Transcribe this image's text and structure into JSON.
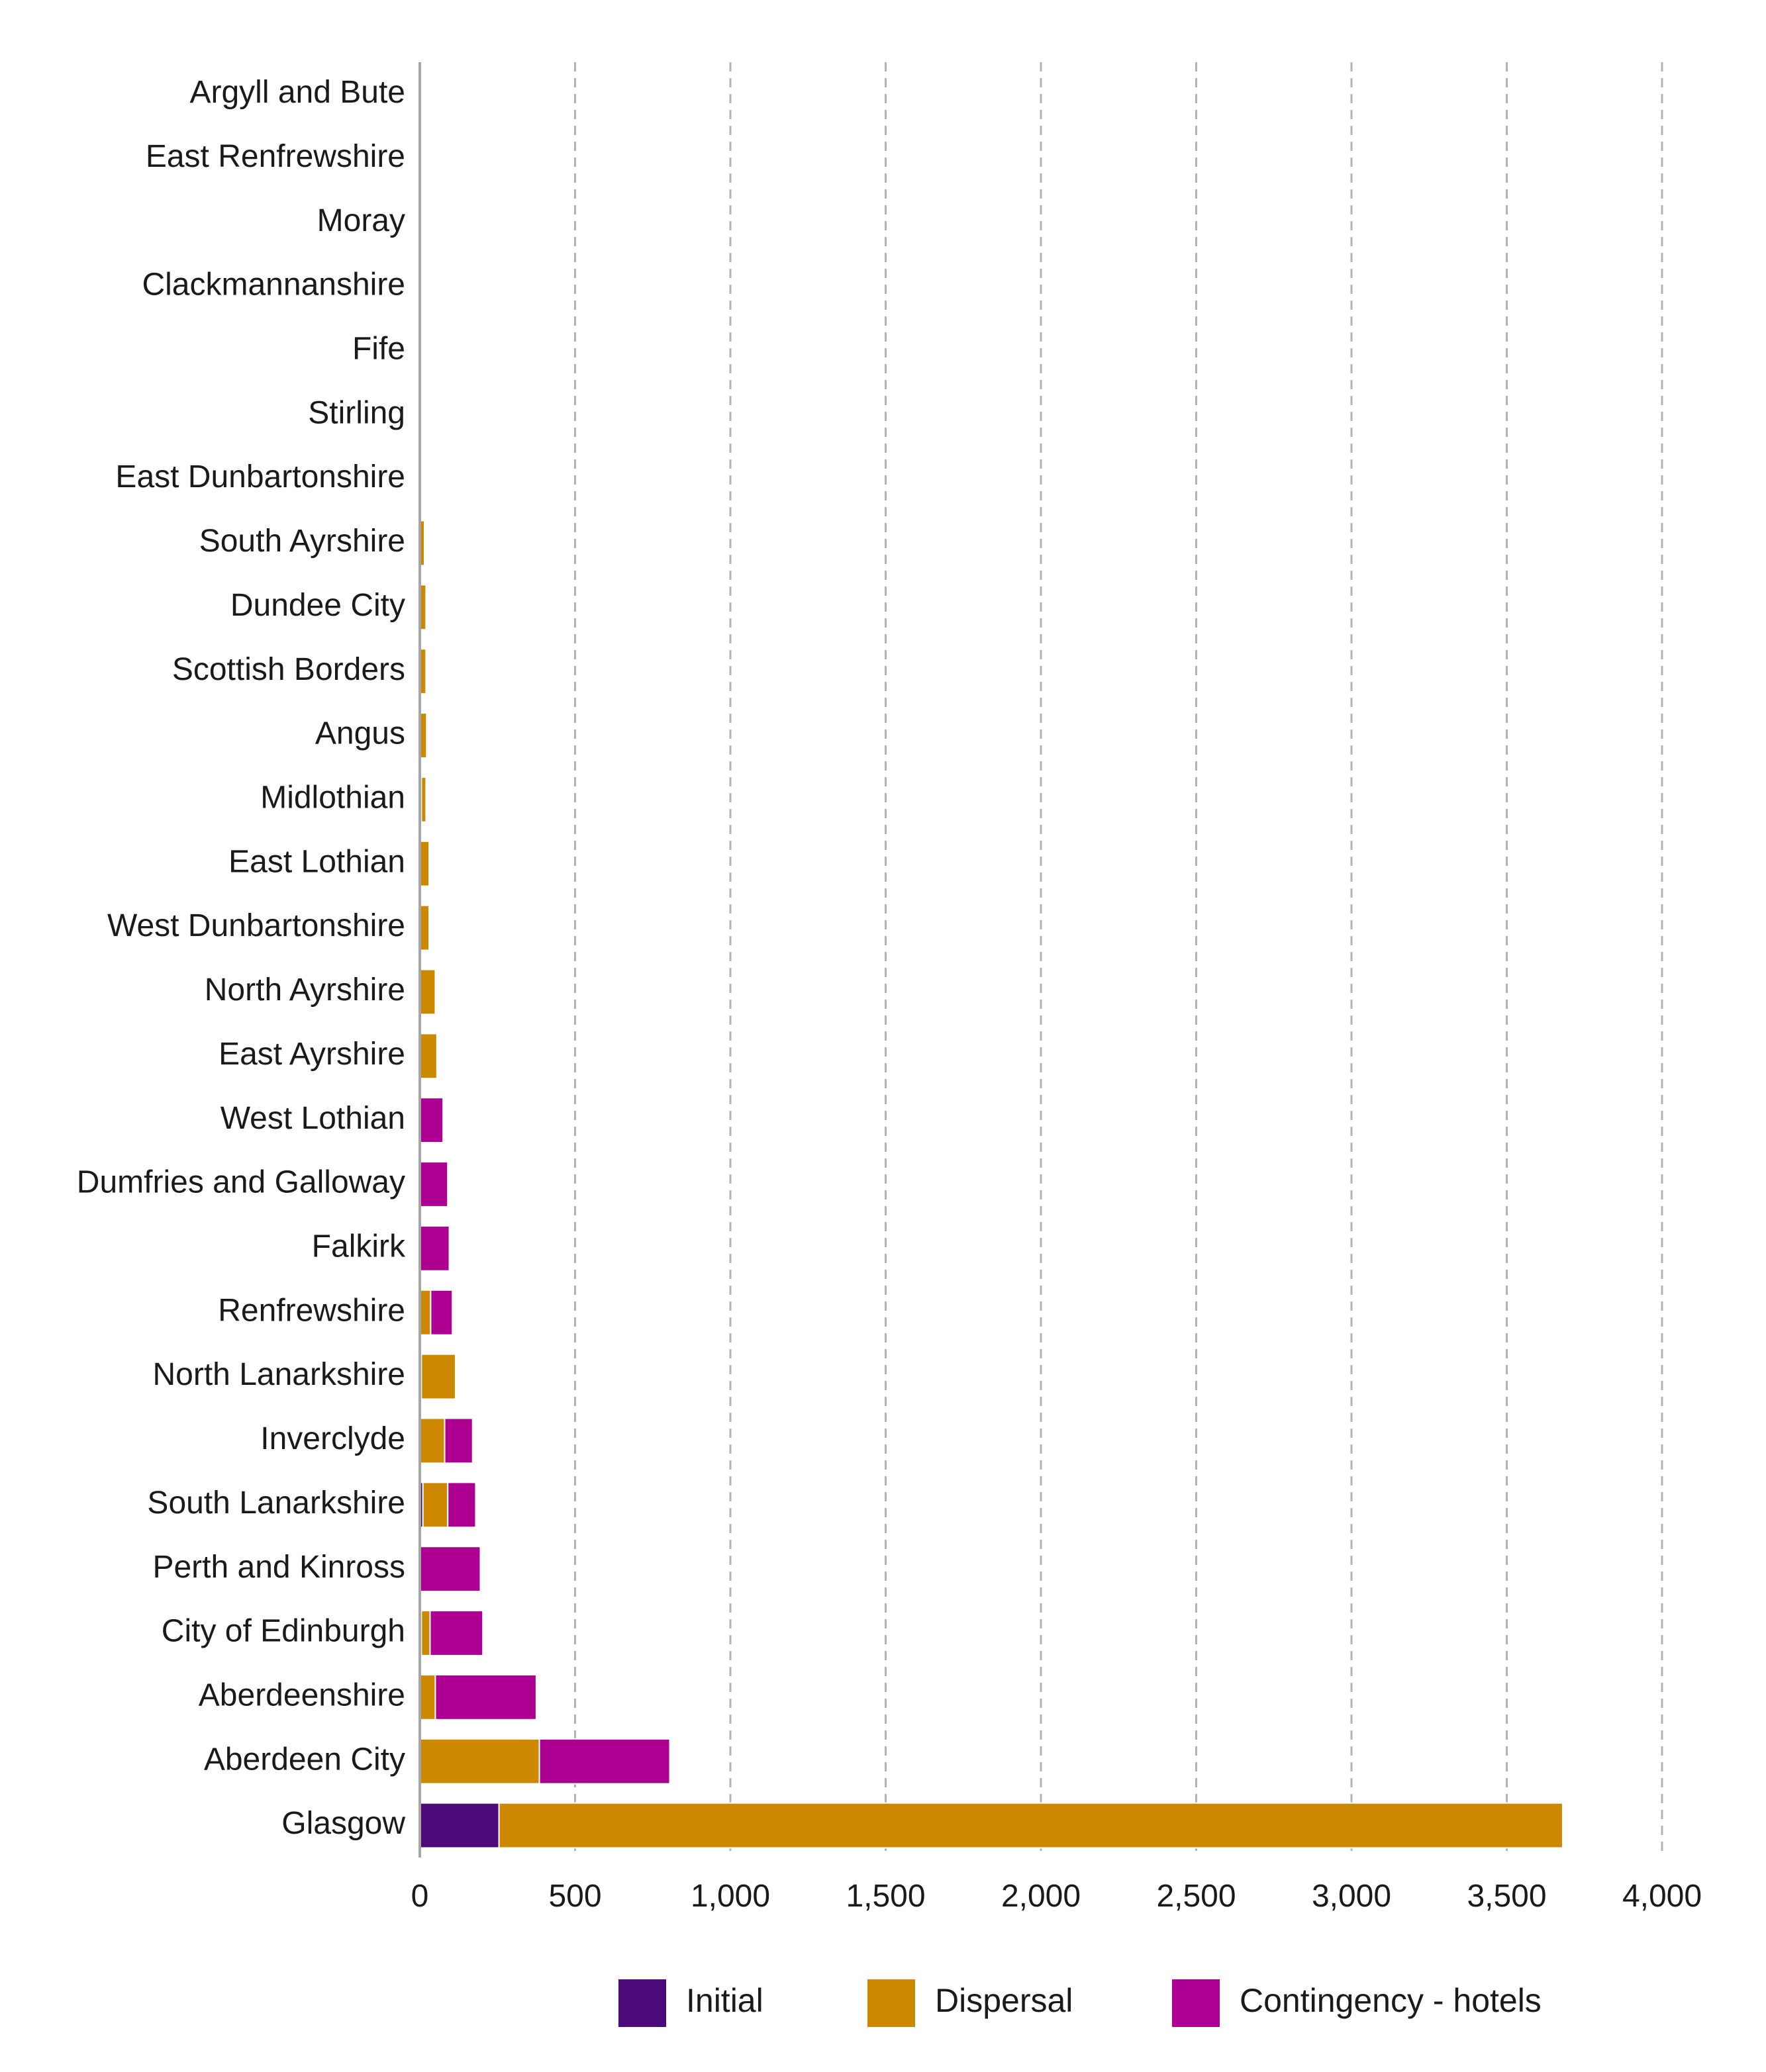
{
  "chart_data": {
    "type": "bar",
    "orientation": "horizontal",
    "stacked": true,
    "title": "",
    "xlabel": "",
    "ylabel": "",
    "xlim": [
      0,
      4000
    ],
    "x_ticks": [
      0,
      500,
      1000,
      1500,
      2000,
      2500,
      3000,
      3500,
      4000
    ],
    "x_tick_labels": [
      "0",
      "500",
      "1,000",
      "1,500",
      "2,000",
      "2,500",
      "3,000",
      "3,500",
      "4,000"
    ],
    "grid": "vertical dashed",
    "legend_position": "bottom",
    "categories": [
      "Argyll and Bute",
      "East Renfrewshire",
      "Moray",
      "Clackmannanshire",
      "Fife",
      "Stirling",
      "East Dunbartonshire",
      "South Ayrshire",
      "Dundee City",
      "Scottish Borders",
      "Angus",
      "Midlothian",
      "East Lothian",
      "West Dunbartonshire",
      "North Ayrshire",
      "East Ayrshire",
      "West Lothian",
      "Dumfries and Galloway",
      "Falkirk",
      "Renfrewshire",
      "North Lanarkshire",
      "Inverclyde",
      "South Lanarkshire",
      "Perth and Kinross",
      "City of Edinburgh",
      "Aberdeenshire",
      "Aberdeen City",
      "Glasgow"
    ],
    "series": [
      {
        "name": "Initial",
        "color": "#4d0b7a",
        "values": [
          0,
          0,
          0,
          0,
          0,
          0,
          0,
          0,
          0,
          0,
          0,
          5,
          0,
          0,
          0,
          0,
          0,
          0,
          0,
          0,
          5,
          0,
          10,
          0,
          5,
          0,
          0,
          255
        ]
      },
      {
        "name": "Dispersal",
        "color": "#cc8800",
        "values": [
          0,
          0,
          0,
          0,
          0,
          0,
          5,
          15,
          20,
          20,
          22,
          15,
          30,
          30,
          50,
          55,
          0,
          0,
          0,
          35,
          110,
          80,
          80,
          0,
          28,
          50,
          385,
          3425
        ]
      },
      {
        "name": "Contingency - hotels",
        "color": "#ad0092",
        "values": [
          0,
          0,
          0,
          0,
          0,
          0,
          0,
          0,
          0,
          0,
          0,
          0,
          0,
          0,
          0,
          0,
          75,
          90,
          95,
          70,
          0,
          90,
          90,
          195,
          170,
          325,
          420,
          0
        ]
      }
    ]
  }
}
